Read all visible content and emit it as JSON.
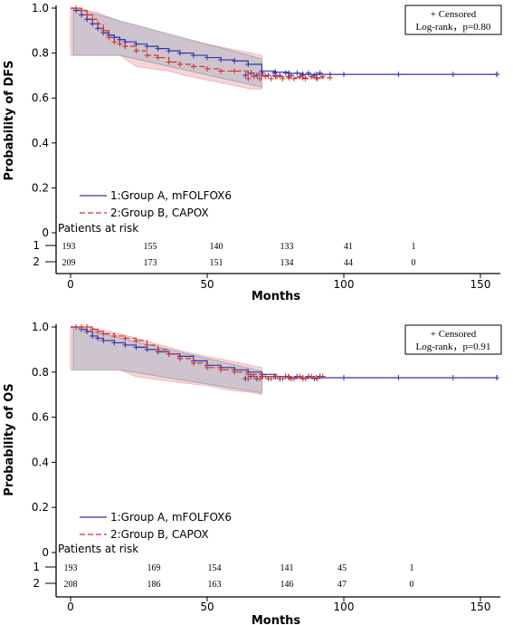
{
  "chart_data": [
    {
      "type": "line",
      "ylabel": "Probability of DFS",
      "xlabel": "Months",
      "xlim": [
        0,
        160
      ],
      "ylim": [
        0,
        1.0
      ],
      "xticks": [
        "0",
        "50",
        "100",
        "150"
      ],
      "yticks": [
        "0",
        "0.2",
        "0.4",
        "0.6",
        "0.8",
        "1.0"
      ],
      "censor_label": "+ Censored",
      "logrank": "Log-rank，p=0.80",
      "risk_title": "Patients at risk",
      "risk_rows": [
        {
          "label": "1",
          "values": [
            "193",
            "155",
            "140",
            "133",
            "41",
            "1"
          ]
        },
        {
          "label": "2",
          "values": [
            "209",
            "173",
            "151",
            "134",
            "44",
            "0"
          ]
        }
      ],
      "series": [
        {
          "name": "1:Group A, mFOLFOX6",
          "color": "#3333aa",
          "x": [
            0,
            2,
            4,
            6,
            8,
            10,
            12,
            14,
            16,
            18,
            20,
            24,
            28,
            32,
            36,
            40,
            45,
            50,
            55,
            60,
            65,
            70,
            75,
            80,
            85,
            90,
            95,
            100,
            120,
            140,
            156
          ],
          "y": [
            1.0,
            0.99,
            0.97,
            0.95,
            0.93,
            0.91,
            0.89,
            0.88,
            0.87,
            0.86,
            0.85,
            0.84,
            0.83,
            0.82,
            0.81,
            0.8,
            0.79,
            0.78,
            0.77,
            0.765,
            0.75,
            0.72,
            0.715,
            0.71,
            0.705,
            0.705,
            0.705,
            0.705,
            0.705,
            0.705,
            0.705
          ]
        },
        {
          "name": "2:Group B, CAPOX",
          "color": "#cc3333",
          "x": [
            0,
            2,
            4,
            6,
            8,
            10,
            12,
            14,
            16,
            18,
            20,
            24,
            28,
            32,
            36,
            40,
            45,
            50,
            55,
            60,
            65,
            70,
            75,
            80,
            85,
            90,
            95
          ],
          "y": [
            1.0,
            1.0,
            0.99,
            0.97,
            0.95,
            0.93,
            0.9,
            0.87,
            0.85,
            0.84,
            0.83,
            0.81,
            0.79,
            0.78,
            0.76,
            0.75,
            0.74,
            0.73,
            0.72,
            0.72,
            0.71,
            0.7,
            0.695,
            0.69,
            0.69,
            0.69,
            0.69
          ]
        }
      ],
      "band": {
        "x": [
          0,
          2,
          4,
          6,
          10,
          14,
          18,
          24,
          30,
          36,
          42,
          50,
          58,
          66,
          70
        ],
        "lower": [
          0.79,
          0.79,
          0.79,
          0.79,
          0.79,
          0.79,
          0.79,
          0.74,
          0.73,
          0.72,
          0.7,
          0.68,
          0.66,
          0.64,
          0.64
        ],
        "upper": [
          1.0,
          1.0,
          1.0,
          0.99,
          0.98,
          0.96,
          0.94,
          0.92,
          0.9,
          0.88,
          0.86,
          0.84,
          0.82,
          0.8,
          0.79
        ]
      }
    },
    {
      "type": "line",
      "ylabel": "Probability of OS",
      "xlabel": "Months",
      "xlim": [
        0,
        160
      ],
      "ylim": [
        0,
        1.0
      ],
      "xticks": [
        "0",
        "50",
        "100",
        "150"
      ],
      "yticks": [
        "0",
        "0.2",
        "0.4",
        "0.6",
        "0.8",
        "1.0"
      ],
      "censor_label": "+ Censored",
      "logrank": "Log-rank，p=0.91",
      "risk_title": "Patients at risk",
      "risk_rows": [
        {
          "label": "1",
          "values": [
            "193",
            "169",
            "154",
            "141",
            "45",
            "1"
          ]
        },
        {
          "label": "2",
          "values": [
            "208",
            "186",
            "163",
            "146",
            "47",
            "0"
          ]
        }
      ],
      "series": [
        {
          "name": "1:Group A, mFOLFOX6",
          "color": "#3333aa",
          "x": [
            0,
            2,
            4,
            6,
            8,
            10,
            12,
            16,
            20,
            24,
            28,
            32,
            36,
            40,
            45,
            50,
            55,
            60,
            65,
            70,
            75,
            80,
            85,
            90,
            100,
            120,
            140,
            156
          ],
          "y": [
            1.0,
            1.0,
            0.99,
            0.98,
            0.96,
            0.95,
            0.94,
            0.93,
            0.92,
            0.91,
            0.9,
            0.89,
            0.88,
            0.87,
            0.85,
            0.83,
            0.82,
            0.81,
            0.8,
            0.79,
            0.78,
            0.775,
            0.775,
            0.775,
            0.775,
            0.775,
            0.775,
            0.775
          ]
        },
        {
          "name": "2:Group B, CAPOX",
          "color": "#cc3333",
          "x": [
            0,
            2,
            4,
            6,
            8,
            10,
            12,
            16,
            20,
            24,
            28,
            32,
            36,
            40,
            45,
            50,
            55,
            60,
            65,
            70,
            75,
            80,
            85,
            90
          ],
          "y": [
            1.0,
            1.0,
            1.0,
            1.0,
            0.99,
            0.98,
            0.97,
            0.96,
            0.95,
            0.94,
            0.92,
            0.9,
            0.88,
            0.86,
            0.84,
            0.82,
            0.81,
            0.8,
            0.79,
            0.78,
            0.78,
            0.775,
            0.775,
            0.775
          ]
        }
      ],
      "band": {
        "x": [
          0,
          2,
          4,
          6,
          10,
          14,
          18,
          24,
          30,
          36,
          42,
          50,
          58,
          66,
          70
        ],
        "lower": [
          0.81,
          0.81,
          0.81,
          0.81,
          0.81,
          0.81,
          0.81,
          0.78,
          0.77,
          0.76,
          0.75,
          0.74,
          0.72,
          0.71,
          0.7
        ],
        "upper": [
          1.0,
          1.0,
          1.0,
          1.0,
          0.99,
          0.98,
          0.97,
          0.95,
          0.93,
          0.91,
          0.89,
          0.87,
          0.85,
          0.83,
          0.82
        ]
      }
    }
  ]
}
